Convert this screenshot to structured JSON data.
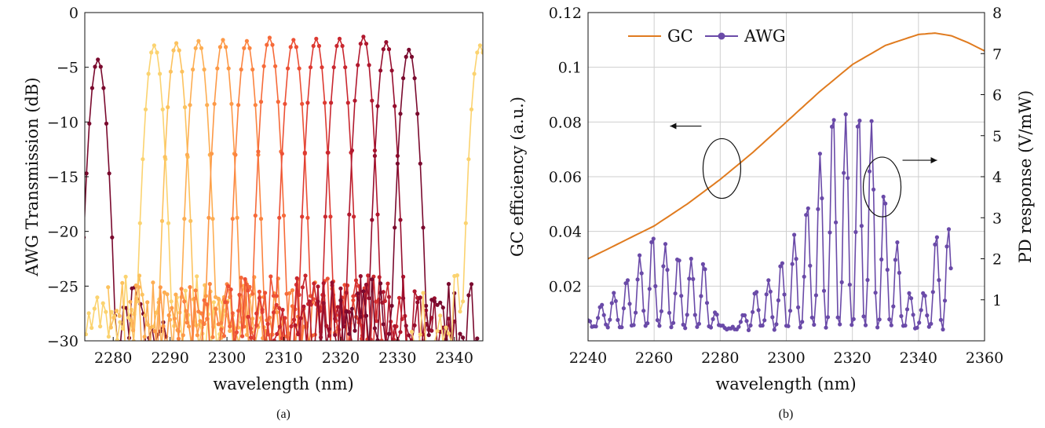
{
  "chart_data": [
    {
      "id": "a",
      "type": "line",
      "caption": "(a)",
      "xlabel": "wavelength (nm)",
      "ylabel": "AWG Transmission (dB)",
      "xlim": [
        2275,
        2345
      ],
      "ylim": [
        -30,
        0
      ],
      "xticks": [
        "2280",
        "2290",
        "2300",
        "2310",
        "2320",
        "2330",
        "2340"
      ],
      "xtick_values": [
        2280,
        2290,
        2300,
        2310,
        2320,
        2330,
        2340
      ],
      "yticks": [
        "−30",
        "−25",
        "−20",
        "−15",
        "−10",
        "−5",
        "0"
      ],
      "ytick_values": [
        -30,
        -25,
        -20,
        -15,
        -10,
        -5,
        0
      ],
      "grid": false,
      "markers": true,
      "channel_width_nm": 2.0,
      "series": [
        {
          "center": 2277.3,
          "peak": -4.3,
          "color": "#7a0a2e"
        },
        {
          "center": 2287.2,
          "peak": -3.0,
          "color": "#fbd370"
        },
        {
          "center": 2291.1,
          "peak": -2.8,
          "color": "#fcc25e"
        },
        {
          "center": 2295.0,
          "peak": -2.6,
          "color": "#fdae53"
        },
        {
          "center": 2299.3,
          "peak": -2.5,
          "color": "#fd9947"
        },
        {
          "center": 2303.5,
          "peak": -2.6,
          "color": "#fb8440"
        },
        {
          "center": 2307.5,
          "peak": -2.3,
          "color": "#f66a39"
        },
        {
          "center": 2311.7,
          "peak": -2.5,
          "color": "#ec5035"
        },
        {
          "center": 2315.7,
          "peak": -2.4,
          "color": "#dd3a32"
        },
        {
          "center": 2319.8,
          "peak": -2.4,
          "color": "#c9272f"
        },
        {
          "center": 2324.0,
          "peak": -2.2,
          "color": "#b1182e"
        },
        {
          "center": 2328.0,
          "peak": -2.7,
          "color": "#960e2e"
        },
        {
          "center": 2332.0,
          "peak": -3.4,
          "color": "#7a0a2e"
        },
        {
          "center": 2344.5,
          "peak": -3.0,
          "color": "#fbd370"
        }
      ]
    },
    {
      "id": "b",
      "type": "line",
      "caption": "(b)",
      "xlabel": "wavelength (nm)",
      "ylabel": "GC efficiency (a.u.)",
      "y2label": "PD response (V/mW)",
      "xlim": [
        2240,
        2360
      ],
      "ylim": [
        0,
        0.12
      ],
      "y2lim": [
        0,
        8
      ],
      "xticks": [
        "2240",
        "2260",
        "2280",
        "2300",
        "2320",
        "2340",
        "2360"
      ],
      "xtick_values": [
        2240,
        2260,
        2280,
        2300,
        2320,
        2340,
        2360
      ],
      "yticks": [
        "0.02",
        "0.04",
        "0.06",
        "0.08",
        "0.1",
        "0.12"
      ],
      "ytick_values": [
        0.02,
        0.04,
        0.06,
        0.08,
        0.1,
        0.12
      ],
      "y2ticks": [
        "1",
        "2",
        "3",
        "4",
        "5",
        "6",
        "7",
        "8"
      ],
      "y2tick_values": [
        1,
        2,
        3,
        4,
        5,
        6,
        7,
        8
      ],
      "grid": true,
      "legend": {
        "placement": "top-left",
        "entries": [
          "GC",
          "AWG"
        ]
      },
      "gc_color": "#e07b1f",
      "awg_color": "#6a4aa8",
      "gc_curve": {
        "x": [
          2240,
          2250,
          2260,
          2270,
          2280,
          2290,
          2300,
          2310,
          2320,
          2330,
          2340,
          2345,
          2350,
          2355,
          2360
        ],
        "y": [
          0.03,
          0.036,
          0.042,
          0.05,
          0.059,
          0.069,
          0.08,
          0.091,
          0.101,
          0.108,
          0.112,
          0.1125,
          0.1115,
          0.109,
          0.106
        ]
      },
      "awg_envelope_y2": {
        "x": [
          2240,
          2245,
          2250,
          2255,
          2260,
          2265,
          2270,
          2275,
          2280,
          2285,
          2290,
          2295,
          2300,
          2305,
          2310,
          2315,
          2320,
          2324,
          2328,
          2332,
          2336,
          2340,
          2344,
          2348,
          2350
        ],
        "y": [
          0.5,
          1.0,
          1.3,
          2.0,
          2.7,
          2.2,
          2.0,
          2.0,
          0.3,
          0.3,
          1.2,
          1.5,
          2.2,
          3.0,
          4.5,
          6.0,
          5.2,
          6.3,
          4.2,
          3.0,
          1.5,
          0.6,
          2.2,
          3.5,
          2.2
        ],
        "period_nm": 3.9
      },
      "annotations": [
        {
          "type": "ellipse",
          "x": 2280.5,
          "y": 0.063,
          "arrow": "left",
          "target_axis": "left"
        },
        {
          "type": "ellipse",
          "x": 2329,
          "y": 3.75,
          "arrow": "right",
          "target_axis": "right"
        }
      ]
    }
  ]
}
